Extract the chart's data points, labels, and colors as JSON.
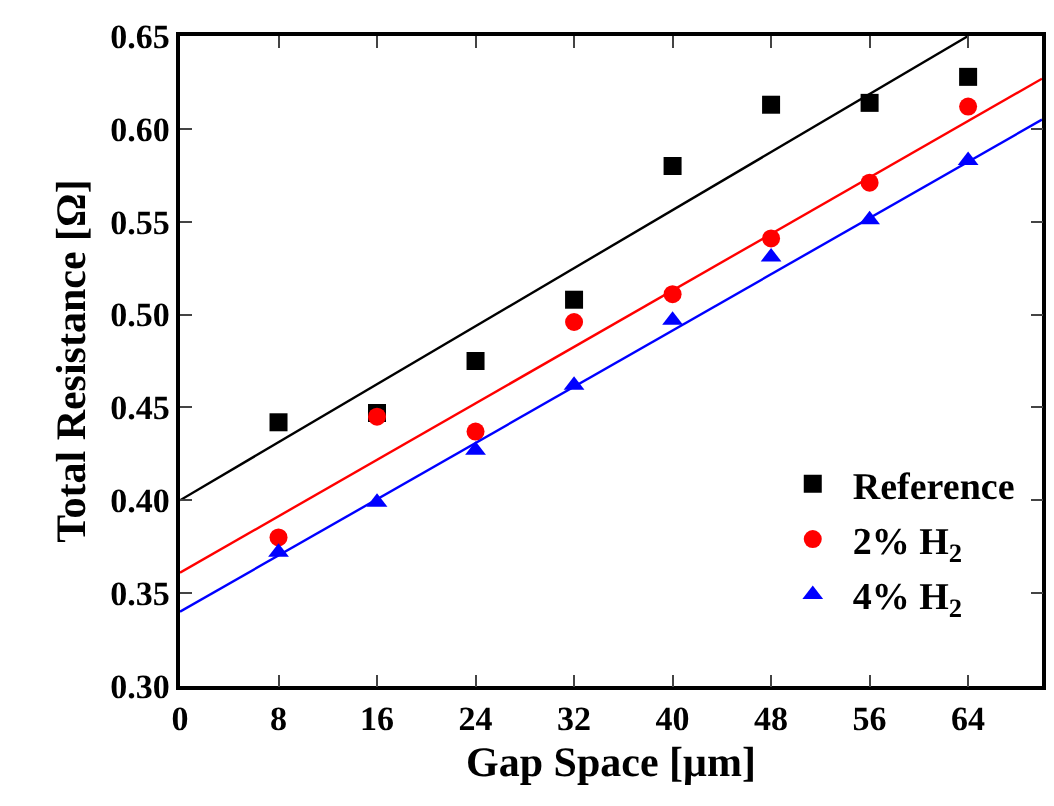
{
  "chart_data": {
    "type": "scatter",
    "xlabel": "Gap Space [μm]",
    "ylabel": "Total Resistance [Ω]",
    "x": [
      8,
      16,
      24,
      32,
      40,
      48,
      56,
      64
    ],
    "xlim": [
      0,
      70
    ],
    "xticks": [
      0,
      8,
      16,
      24,
      32,
      40,
      48,
      56,
      64
    ],
    "ylim": [
      0.3,
      0.65
    ],
    "yticks": [
      {
        "value": 0.3,
        "label": "0.30"
      },
      {
        "value": 0.35,
        "label": "0.35"
      },
      {
        "value": 0.4,
        "label": "0.40"
      },
      {
        "value": 0.45,
        "label": "0.45"
      },
      {
        "value": 0.5,
        "label": "0.50"
      },
      {
        "value": 0.55,
        "label": "0.55"
      },
      {
        "value": 0.6,
        "label": "0.60"
      },
      {
        "value": 0.65,
        "label": "0.65"
      }
    ],
    "legend": "bottom right",
    "series": [
      {
        "name": "Reference",
        "color": "#000000",
        "marker": "square",
        "values": [
          0.442,
          0.447,
          0.475,
          0.508,
          0.58,
          0.613,
          0.614,
          0.628
        ]
      },
      {
        "name": "2% H$_{2}$",
        "color": "#ff0000",
        "marker": "circle",
        "values": [
          0.38,
          0.445,
          0.437,
          0.496,
          0.511,
          0.541,
          0.571,
          0.612
        ]
      },
      {
        "name": "4% H$_{2}$",
        "color": "#0000ff",
        "marker": "triangle",
        "values": [
          0.372,
          0.399,
          0.427,
          0.462,
          0.497,
          0.531,
          0.551,
          0.583
        ]
      },
      {
        "type": "line",
        "color": "#000000",
        "x": [
          0,
          64
        ],
        "values": [
          0.4,
          0.65
        ]
      },
      {
        "type": "line",
        "color": "#ff0000",
        "x": [
          0,
          70
        ],
        "values": [
          0.361,
          0.627
        ]
      },
      {
        "type": "line",
        "color": "#0000ff",
        "x": [
          0,
          70
        ],
        "values": [
          0.34,
          0.605
        ]
      }
    ]
  }
}
